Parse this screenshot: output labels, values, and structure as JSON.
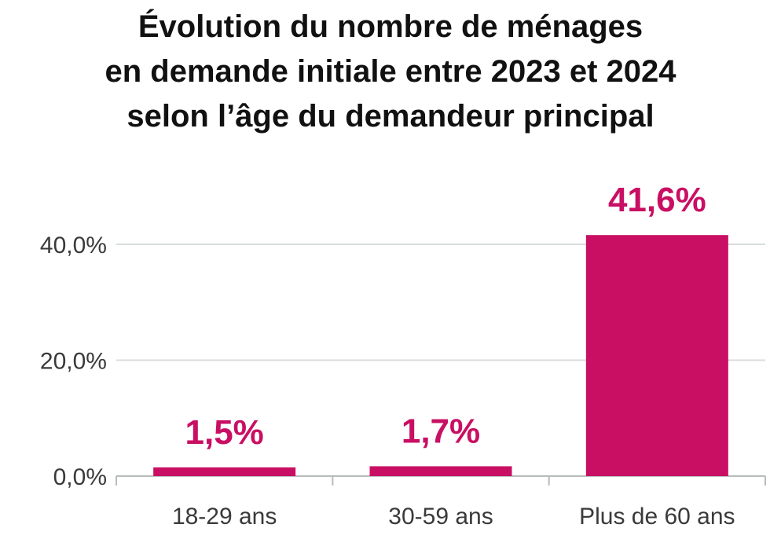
{
  "chart_data": {
    "type": "bar",
    "title_lines": [
      "Évolution du nombre de ménages",
      "en demande initiale entre 2023 et 2024",
      "selon l’âge du demandeur principal"
    ],
    "categories": [
      "18-29 ans",
      "30-59 ans",
      "Plus de 60 ans"
    ],
    "values": [
      1.5,
      1.7,
      41.6
    ],
    "data_labels": [
      "1,5%",
      "1,7%",
      "41,6%"
    ],
    "y_ticks": [
      0,
      20,
      40
    ],
    "y_tick_labels": [
      "0,0%",
      "20,0%",
      "40,0%"
    ],
    "ylim": [
      0,
      45
    ],
    "grid": true,
    "legend": "none",
    "colors": {
      "bar": "#c90f63",
      "data_label": "#c90f63",
      "gridline": "#d8dddd",
      "axis": "#b8bcbc"
    }
  }
}
